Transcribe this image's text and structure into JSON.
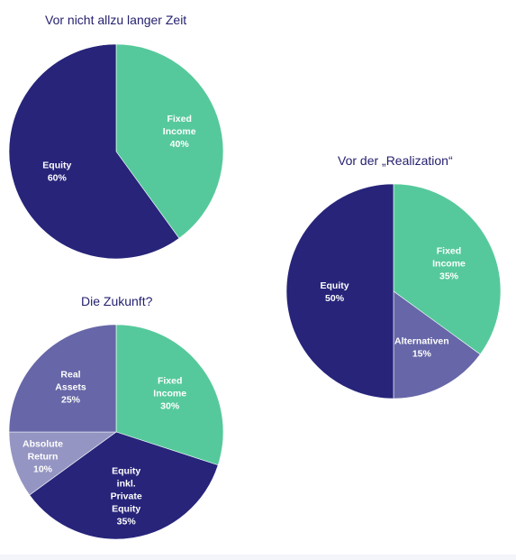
{
  "colors": {
    "navy": "#27247a",
    "green": "#56c99c",
    "purple": "#6666a8",
    "lavender": "#9595c3",
    "title": "#231f6e",
    "label": "#ffffff"
  },
  "chart_data": [
    {
      "type": "pie",
      "title": "Vor nicht allzu langer Zeit",
      "slices": [
        {
          "label": [
            "Fixed",
            "Income",
            "40%"
          ],
          "value": 40,
          "color": "#56c99c"
        },
        {
          "label": [
            "Equity",
            "60%"
          ],
          "value": 60,
          "color": "#27247a"
        }
      ]
    },
    {
      "type": "pie",
      "title": "Vor der „Realization“",
      "slices": [
        {
          "label": [
            "Fixed",
            "Income",
            "35%"
          ],
          "value": 35,
          "color": "#56c99c"
        },
        {
          "label": [
            "Alternativen",
            "15%"
          ],
          "value": 15,
          "color": "#6666a8"
        },
        {
          "label": [
            "Equity",
            "50%"
          ],
          "value": 50,
          "color": "#27247a"
        }
      ]
    },
    {
      "type": "pie",
      "title": "Die Zukunft?",
      "slices": [
        {
          "label": [
            "Fixed",
            "Income",
            "30%"
          ],
          "value": 30,
          "color": "#56c99c"
        },
        {
          "label": [
            "Equity",
            "inkl.",
            "Private",
            "Equity",
            "35%"
          ],
          "value": 35,
          "color": "#27247a"
        },
        {
          "label": [
            "Absolute",
            "Return",
            "10%"
          ],
          "value": 10,
          "color": "#9595c3"
        },
        {
          "label": [
            "Real",
            "Assets",
            "25%"
          ],
          "value": 25,
          "color": "#6666a8"
        }
      ]
    }
  ]
}
